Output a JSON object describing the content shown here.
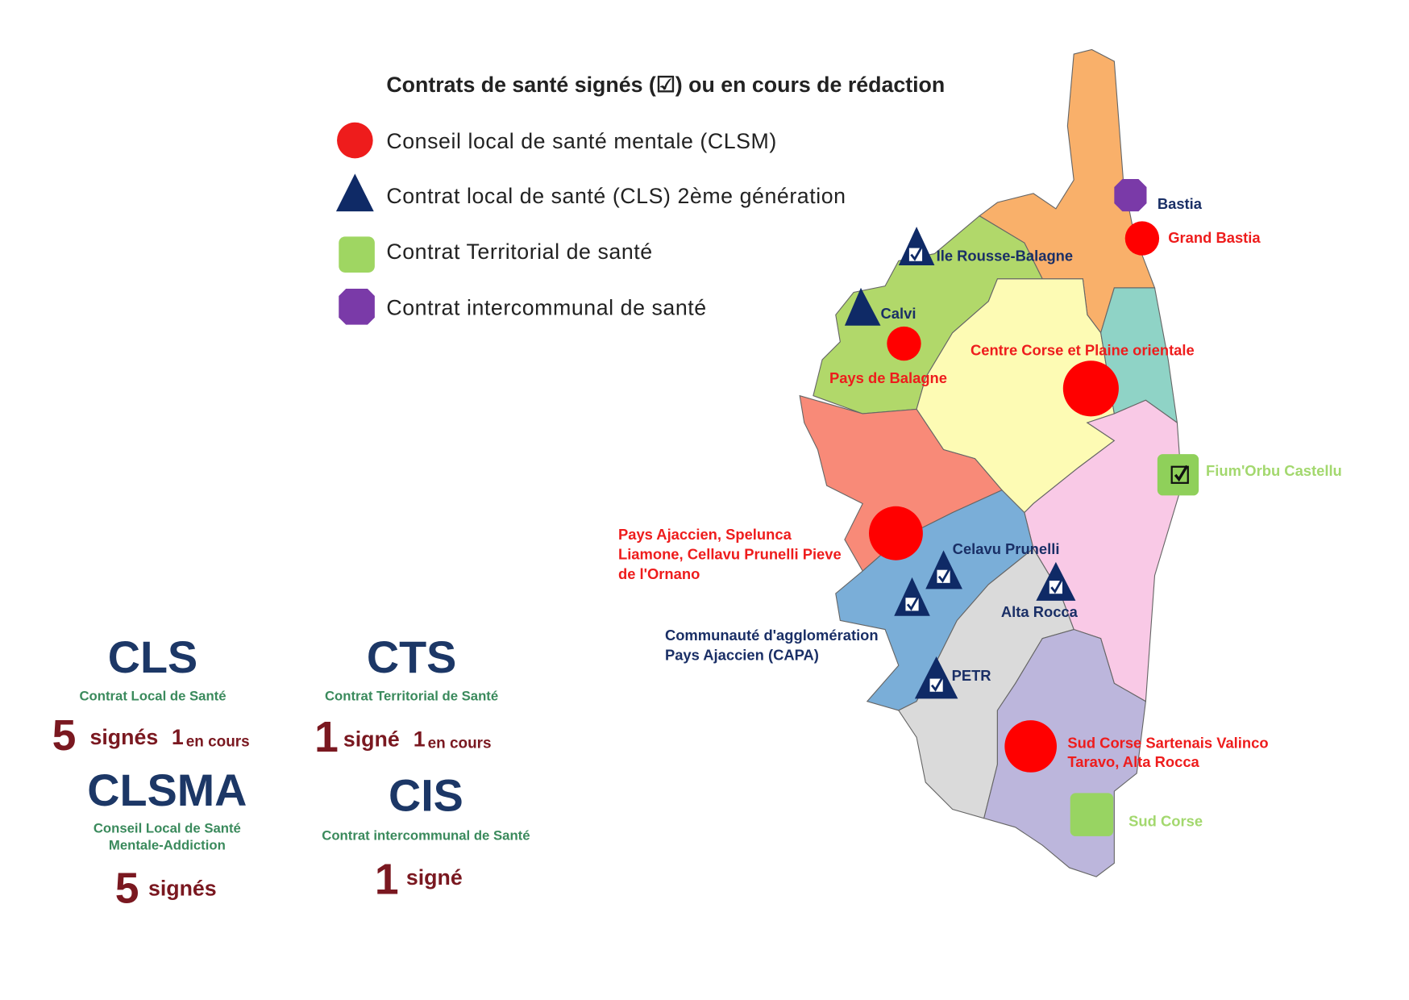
{
  "legend": {
    "title": "Contrats de santé signés (☑) ou en cours de rédaction",
    "items": [
      {
        "shape": "red-circle",
        "label": "Conseil local de santé mentale (CLSM)",
        "color": "#ee1c1c"
      },
      {
        "shape": "navy-triangle",
        "label": "Contrat local de santé (CLS) 2ème génération",
        "color": "#0f2a66"
      },
      {
        "shape": "green-square",
        "label": "Contrat Territorial de santé",
        "color": "#9fd662"
      },
      {
        "shape": "purple-octagon",
        "label": "Contrat  intercommunal de santé",
        "color": "#7a3aa8"
      }
    ]
  },
  "map": {
    "labels": {
      "bastia": "Bastia",
      "grand_bastia": "Grand Bastia",
      "ile_rousse": "Ile Rousse-Balagne",
      "calvi": "Calvi",
      "pays_balagne": "Pays de Balagne",
      "centre_corse": "Centre Corse et Plaine orientale",
      "fiumorbu": "Fium'Orbu Castellu",
      "pays_ajaccien_1": "Pays Ajaccien, Spelunca",
      "pays_ajaccien_2": "Liamone, Cellavu Prunelli Pieve",
      "pays_ajaccien_3": "de l'Ornano",
      "celavu": "Celavu Prunelli",
      "alta_rocca": "Alta Rocca",
      "capa_1": "Communauté d'agglomération",
      "capa_2": "Pays Ajaccien (CAPA)",
      "petr": "PETR",
      "sud_corse_clsm_1": "Sud Corse Sartenais Valinco",
      "sud_corse_clsm_2": "Taravo, Alta Rocca",
      "sud_corse": "Sud Corse"
    }
  },
  "stats": {
    "cls": {
      "acronym": "CLS",
      "full": "Contrat Local de Santé",
      "signed_count": "5",
      "signed_label": "signés",
      "pending_count": "1",
      "pending_label": "en cours"
    },
    "cts": {
      "acronym": "CTS",
      "full": "Contrat Territorial de Santé",
      "signed_count": "1",
      "signed_label": "signé",
      "pending_count": "1",
      "pending_label": "en cours"
    },
    "clsma": {
      "acronym": "CLSMA",
      "full_1": "Conseil Local de Santé",
      "full_2": "Mentale-Addiction",
      "signed_count": "5",
      "signed_label": "signés"
    },
    "cis": {
      "acronym": "CIS",
      "full": "Contrat intercommunal  de Santé",
      "signed_count": "1",
      "signed_label": "signé"
    }
  }
}
